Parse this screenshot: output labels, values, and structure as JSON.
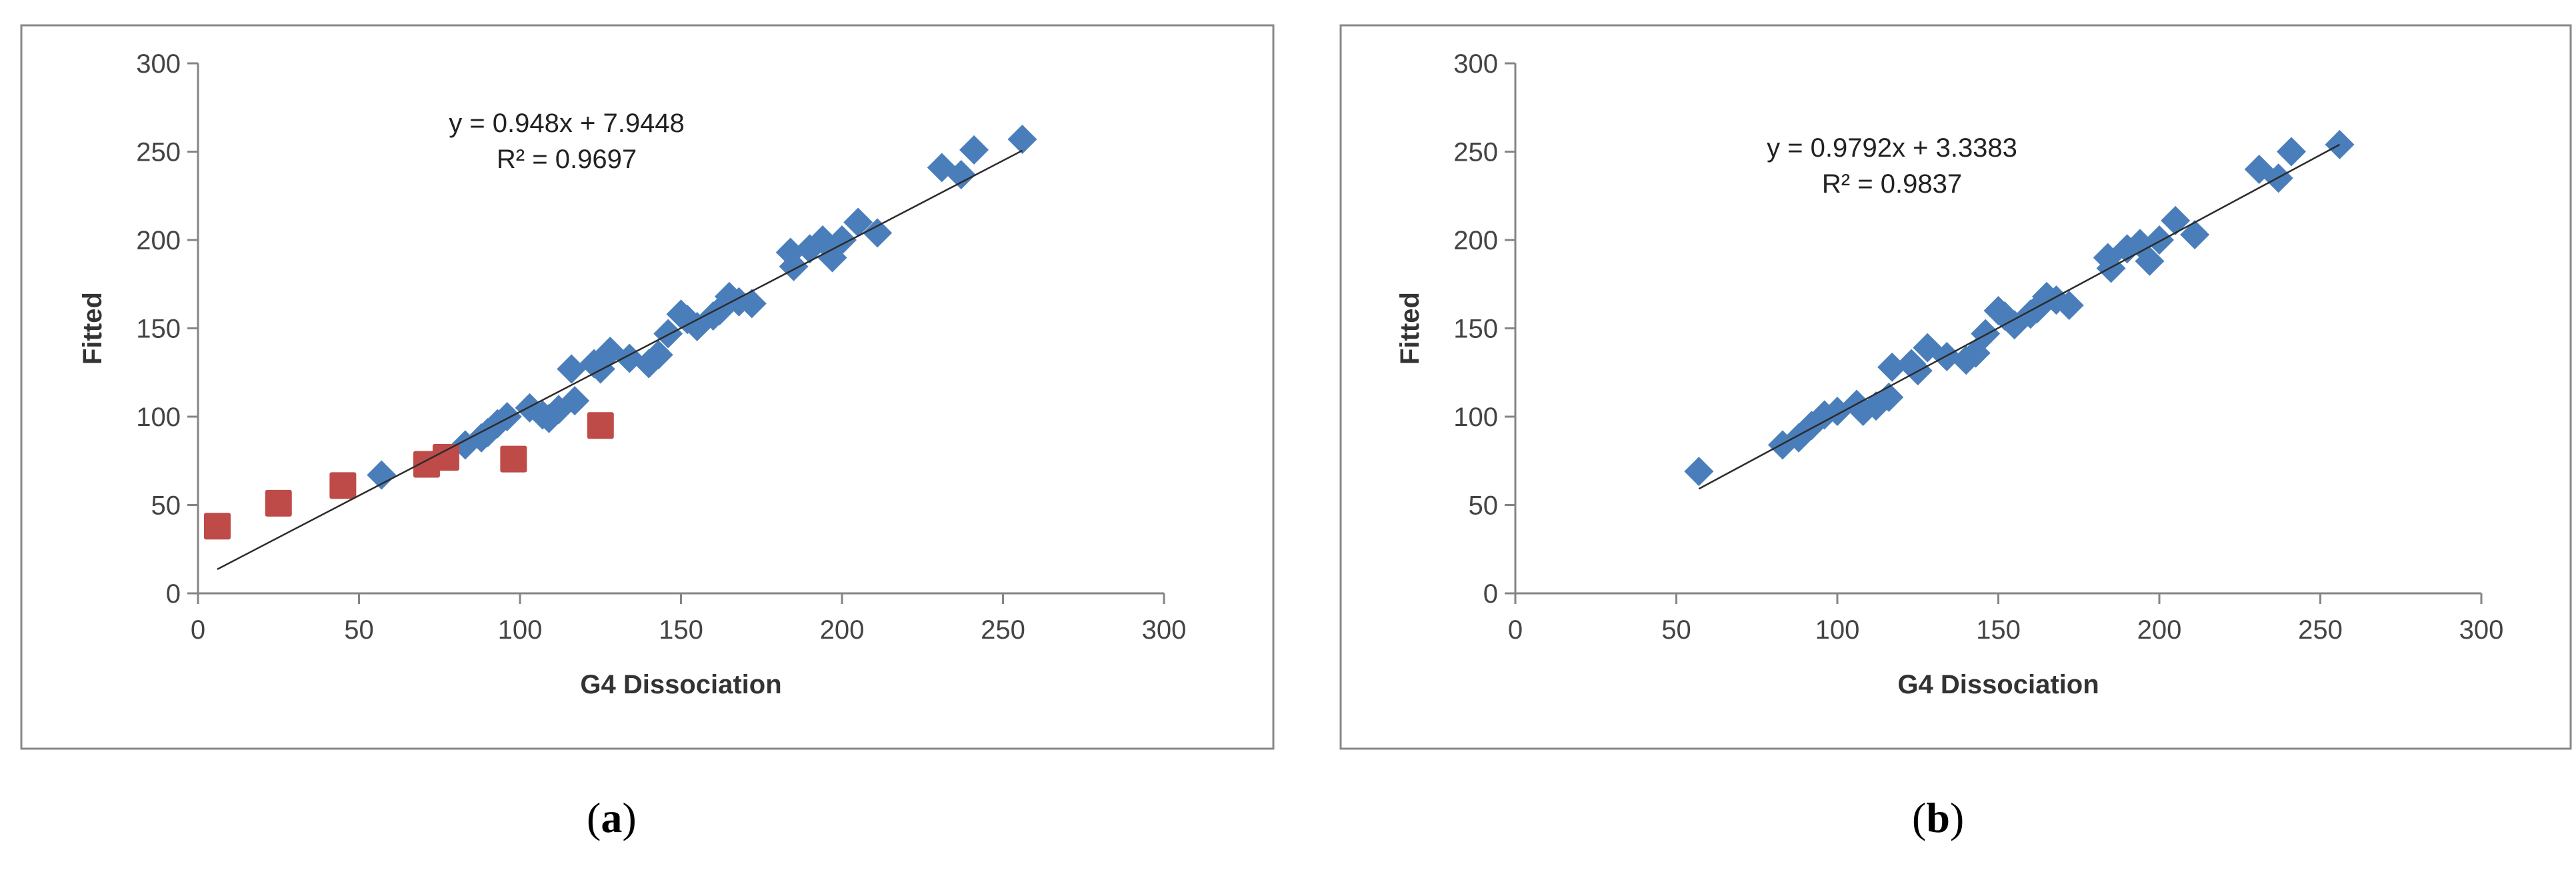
{
  "chart_data": [
    {
      "type": "scatter",
      "panel_label": "a",
      "xlabel": "G4 Dissociation",
      "ylabel": "Fitted",
      "xlim": [
        0,
        300
      ],
      "ylim": [
        0,
        300
      ],
      "xticks": [
        "0",
        "50",
        "100",
        "150",
        "200",
        "250",
        "300"
      ],
      "yticks": [
        "0",
        "50",
        "100",
        "150",
        "200",
        "250",
        "300"
      ],
      "grid": false,
      "legend": "none",
      "equation": "y = 0.948x + 7.9448",
      "r_squared": "R² = 0.9697",
      "trendline": {
        "slope": 0.948,
        "intercept": 7.9448,
        "x_range": [
          6,
          256
        ]
      },
      "series": [
        {
          "marker": "diamond",
          "color": "#4a7ebb",
          "points": [
            [
              57,
              67
            ],
            [
              83,
              84
            ],
            [
              88,
              88
            ],
            [
              90,
              91
            ],
            [
              93,
              96
            ],
            [
              96,
              100
            ],
            [
              103,
              105
            ],
            [
              107,
              101
            ],
            [
              109,
              99
            ],
            [
              112,
              104
            ],
            [
              117,
              109
            ],
            [
              116,
              127
            ],
            [
              123,
              130
            ],
            [
              125,
              127
            ],
            [
              128,
              137
            ],
            [
              134,
              133
            ],
            [
              140,
              130
            ],
            [
              143,
              135
            ],
            [
              146,
              147
            ],
            [
              150,
              158
            ],
            [
              152,
              155
            ],
            [
              155,
              151
            ],
            [
              160,
              157
            ],
            [
              162,
              160
            ],
            [
              165,
              168
            ],
            [
              168,
              165
            ],
            [
              172,
              164
            ],
            [
              184,
              193
            ],
            [
              185,
              185
            ],
            [
              190,
              195
            ],
            [
              194,
              200
            ],
            [
              197,
              190
            ],
            [
              200,
              200
            ],
            [
              205,
              210
            ],
            [
              211,
              204
            ],
            [
              231,
              241
            ],
            [
              237,
              237
            ],
            [
              241,
              251
            ],
            [
              256,
              257
            ]
          ]
        },
        {
          "marker": "square",
          "color": "#be4b48",
          "points": [
            [
              6,
              38
            ],
            [
              25,
              51
            ],
            [
              45,
              61
            ],
            [
              71,
              73
            ],
            [
              77,
              77
            ],
            [
              98,
              76
            ],
            [
              125,
              95
            ]
          ]
        }
      ]
    },
    {
      "type": "scatter",
      "panel_label": "b",
      "xlabel": "G4 Dissociation",
      "ylabel": "Fitted",
      "xlim": [
        0,
        300
      ],
      "ylim": [
        0,
        300
      ],
      "xticks": [
        "0",
        "50",
        "100",
        "150",
        "200",
        "250",
        "300"
      ],
      "yticks": [
        "0",
        "50",
        "100",
        "150",
        "200",
        "250",
        "300"
      ],
      "grid": false,
      "legend": "none",
      "equation": "y = 0.9792x + 3.3383",
      "r_squared": "R² = 0.9837",
      "trendline": {
        "slope": 0.9792,
        "intercept": 3.3383,
        "x_range": [
          57,
          256
        ]
      },
      "series": [
        {
          "marker": "diamond",
          "color": "#4a7ebb",
          "points": [
            [
              57,
              69
            ],
            [
              83,
              84
            ],
            [
              88,
              88
            ],
            [
              92,
              95
            ],
            [
              96,
              101
            ],
            [
              100,
              103
            ],
            [
              106,
              107
            ],
            [
              108,
              103
            ],
            [
              112,
              106
            ],
            [
              116,
              111
            ],
            [
              117,
              128
            ],
            [
              123,
              130
            ],
            [
              125,
              126
            ],
            [
              128,
              139
            ],
            [
              134,
              134
            ],
            [
              140,
              132
            ],
            [
              143,
              136
            ],
            [
              146,
              147
            ],
            [
              150,
              160
            ],
            [
              152,
              157
            ],
            [
              155,
              152
            ],
            [
              160,
              158
            ],
            [
              162,
              161
            ],
            [
              165,
              168
            ],
            [
              168,
              166
            ],
            [
              172,
              163
            ],
            [
              184,
              190
            ],
            [
              185,
              184
            ],
            [
              190,
              195
            ],
            [
              194,
              198
            ],
            [
              197,
              188
            ],
            [
              200,
              200
            ],
            [
              205,
              211
            ],
            [
              211,
              203
            ],
            [
              231,
              240
            ],
            [
              237,
              235
            ],
            [
              241,
              250
            ],
            [
              256,
              254
            ]
          ]
        }
      ]
    }
  ]
}
